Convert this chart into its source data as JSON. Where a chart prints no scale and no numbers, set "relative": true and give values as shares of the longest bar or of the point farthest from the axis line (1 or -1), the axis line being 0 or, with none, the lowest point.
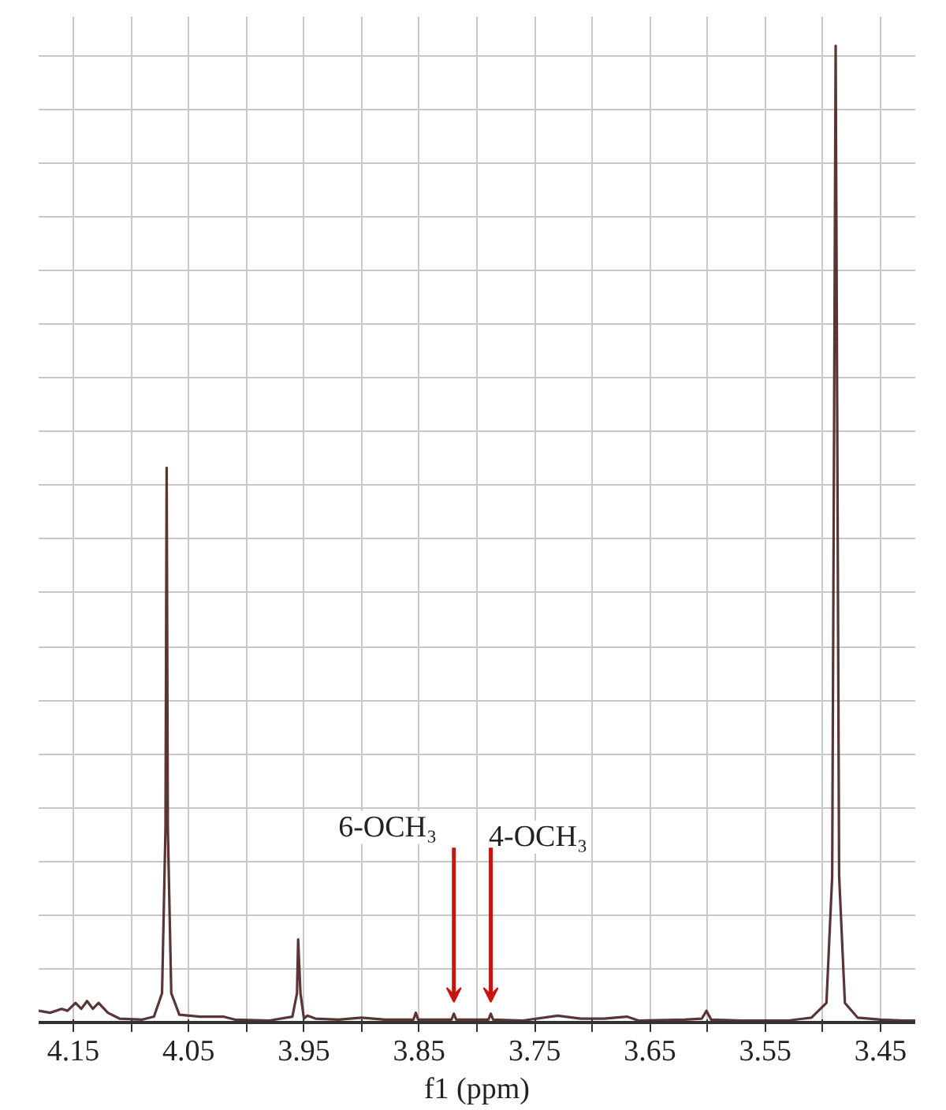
{
  "chart_data": {
    "type": "line",
    "relative": true,
    "xlabel": "f1 (ppm)",
    "x": [
      4.18,
      4.17,
      4.16,
      4.155,
      4.148,
      4.143,
      4.138,
      4.133,
      4.128,
      4.12,
      4.11,
      4.09,
      4.08,
      4.073,
      4.07,
      4.069,
      4.068,
      4.065,
      4.058,
      4.04,
      4.02,
      4.01,
      3.98,
      3.96,
      3.956,
      3.955,
      3.953,
      3.95,
      3.947,
      3.94,
      3.92,
      3.9,
      3.88,
      3.855,
      3.853,
      3.851,
      3.822,
      3.82,
      3.818,
      3.79,
      3.788,
      3.786,
      3.76,
      3.73,
      3.71,
      3.69,
      3.67,
      3.66,
      3.62,
      3.605,
      3.601,
      3.597,
      3.57,
      3.53,
      3.51,
      3.497,
      3.492,
      3.489,
      3.486,
      3.481,
      3.47,
      3.45,
      3.43,
      3.42
    ],
    "series": [
      {
        "color": "#5a3535",
        "values": [
          0.012,
          0.01,
          0.014,
          0.012,
          0.02,
          0.014,
          0.022,
          0.014,
          0.02,
          0.01,
          0.004,
          0.003,
          0.006,
          0.03,
          0.2,
          0.568,
          0.2,
          0.03,
          0.008,
          0.006,
          0.006,
          0.003,
          0.002,
          0.006,
          0.03,
          0.085,
          0.03,
          0.004,
          0.007,
          0.004,
          0.003,
          0.005,
          0.003,
          0.003,
          0.01,
          0.003,
          0.003,
          0.009,
          0.003,
          0.003,
          0.009,
          0.003,
          0.002,
          0.007,
          0.004,
          0.004,
          0.006,
          0.002,
          0.003,
          0.004,
          0.012,
          0.003,
          0.002,
          0.002,
          0.005,
          0.02,
          0.15,
          1,
          0.15,
          0.02,
          0.005,
          0.003,
          0.002,
          0.002
        ]
      }
    ],
    "xlim": [
      4.18,
      3.42
    ],
    "xticks": [
      4.15,
      {
        "value": 4.1,
        "label": null
      },
      4.05,
      {
        "value": 4.0,
        "label": null
      },
      3.95,
      {
        "value": 3.9,
        "label": null
      },
      3.85,
      {
        "value": 3.8,
        "label": null
      },
      3.75,
      {
        "value": 3.7,
        "label": null
      },
      3.65,
      {
        "value": 3.6,
        "label": null
      },
      3.55,
      {
        "value": 3.5,
        "label": null
      },
      3.45
    ],
    "grid": true,
    "marker": "none",
    "line_style": "solid",
    "annotations": [
      {
        "text": "6-OCH₃",
        "x": 3.82,
        "y": 0.009
      },
      {
        "text": "4-OCH₃",
        "x": 3.788,
        "y": 0.009
      }
    ]
  }
}
